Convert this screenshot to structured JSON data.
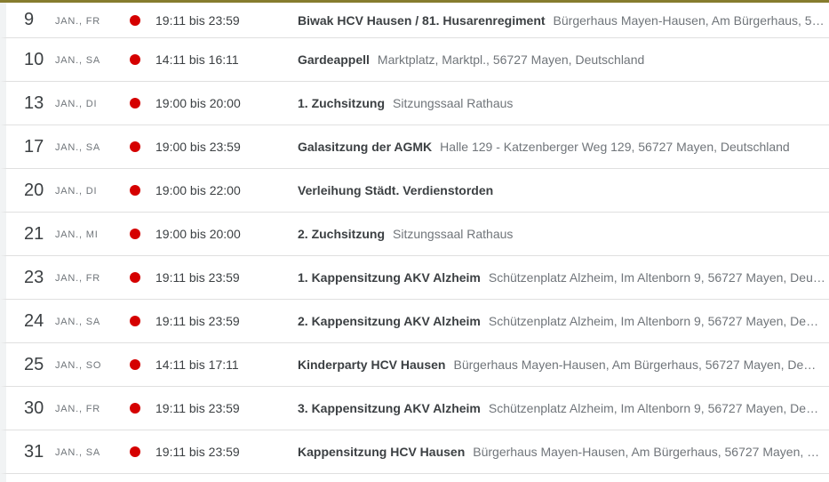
{
  "page": {
    "app": "calendar-schedule-view",
    "month_label": "JAN.",
    "accent_color": "#867c2e",
    "dot_color": "#d50000",
    "divider_color": "#e0e0e0",
    "left_strip_color": "#f1f3f4"
  },
  "events": [
    {
      "day": "9",
      "weekday": "JAN., FR",
      "time": "19:11 bis 23:59",
      "title": "Biwak HCV Hausen / 81. Husarenregiment",
      "location": "Bürgerhaus Mayen-Hausen, Am Bürgerhaus, 5…"
    },
    {
      "day": "10",
      "weekday": "JAN., SA",
      "time": "14:11 bis 16:11",
      "title": "Gardeappell",
      "location": "Marktplatz, Marktpl., 56727 Mayen, Deutschland"
    },
    {
      "day": "13",
      "weekday": "JAN., DI",
      "time": "19:00 bis 20:00",
      "title": "1. Zuchsitzung",
      "location": "Sitzungssaal Rathaus"
    },
    {
      "day": "17",
      "weekday": "JAN., SA",
      "time": "19:00 bis 23:59",
      "title": "Galasitzung der AGMK",
      "location": "Halle 129 - Katzenberger Weg 129, 56727 Mayen, Deutschland"
    },
    {
      "day": "20",
      "weekday": "JAN., DI",
      "time": "19:00 bis 22:00",
      "title": "Verleihung Städt. Verdienstorden",
      "location": ""
    },
    {
      "day": "21",
      "weekday": "JAN., MI",
      "time": "19:00 bis 20:00",
      "title": "2. Zuchsitzung",
      "location": "Sitzungssaal Rathaus"
    },
    {
      "day": "23",
      "weekday": "JAN., FR",
      "time": "19:11 bis 23:59",
      "title": "1. Kappensitzung AKV Alzheim",
      "location": "Schützenplatz Alzheim, Im Altenborn 9, 56727 Mayen, Deu…"
    },
    {
      "day": "24",
      "weekday": "JAN., SA",
      "time": "19:11 bis 23:59",
      "title": "2. Kappensitzung AKV Alzheim",
      "location": "Schützenplatz Alzheim, Im Altenborn 9, 56727 Mayen, De…"
    },
    {
      "day": "25",
      "weekday": "JAN., SO",
      "time": "14:11 bis 17:11",
      "title": "Kinderparty HCV Hausen",
      "location": "Bürgerhaus Mayen-Hausen, Am Bürgerhaus, 56727 Mayen, De…"
    },
    {
      "day": "30",
      "weekday": "JAN., FR",
      "time": "19:11 bis 23:59",
      "title": "3. Kappensitzung AKV Alzheim",
      "location": "Schützenplatz Alzheim, Im Altenborn 9, 56727 Mayen, De…"
    },
    {
      "day": "31",
      "weekday": "JAN., SA",
      "time": "19:11 bis 23:59",
      "title": "Kappensitzung HCV Hausen",
      "location": "Bürgerhaus Mayen-Hausen, Am Bürgerhaus, 56727 Mayen, …"
    }
  ]
}
